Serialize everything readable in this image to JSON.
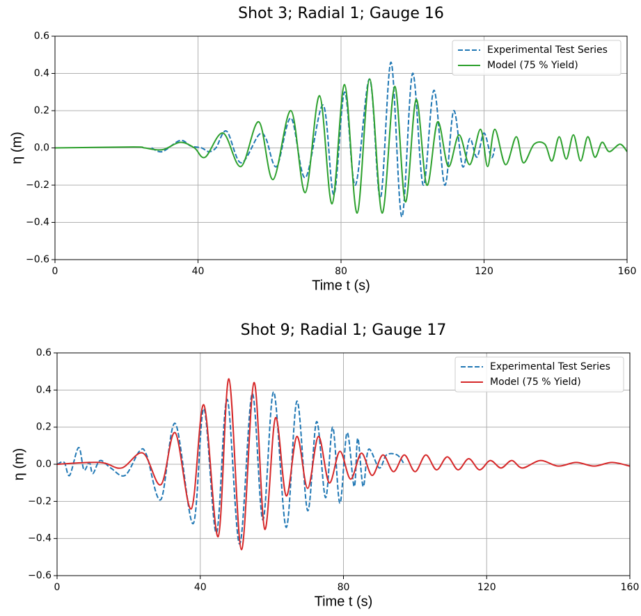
{
  "chart_data": [
    {
      "type": "line",
      "title": "Shot 3; Radial 1; Gauge 16",
      "xlabel": "Time t (s)",
      "ylabel": "η (m)",
      "xlim": [
        0,
        160
      ],
      "ylim": [
        -0.6,
        0.6
      ],
      "xticks": [
        0,
        40,
        80,
        120,
        160
      ],
      "yticks": [
        {
          "value": -0.6,
          "label": "−0.6"
        },
        {
          "value": -0.4,
          "label": "−0.4"
        },
        {
          "value": -0.2,
          "label": "−0.2"
        },
        {
          "value": 0,
          "label": "0.0"
        },
        0.2,
        0.4,
        0.6
      ],
      "grid": true,
      "legend": "upper right",
      "series": [
        {
          "name": "Experimental Test Series",
          "color": "#1f77b4",
          "linestyle": "dashed",
          "x": [
            27,
            30,
            35,
            38,
            41,
            43,
            45,
            48,
            52,
            57,
            59,
            62,
            66,
            70,
            75,
            78,
            81,
            84,
            88,
            91,
            94,
            97,
            100,
            103,
            106,
            109,
            111.5,
            114,
            116,
            118,
            120,
            122,
            123
          ],
          "values": [
            0,
            -0.02,
            0.04,
            0.01,
            0,
            -0.02,
            0,
            0.09,
            -0.08,
            0.07,
            0.05,
            -0.1,
            0.16,
            -0.16,
            0.23,
            -0.25,
            0.3,
            -0.2,
            0.37,
            -0.27,
            0.46,
            -0.37,
            0.4,
            -0.2,
            0.31,
            -0.2,
            0.2,
            -0.1,
            0.05,
            -0.05,
            0.08,
            -0.05,
            0
          ]
        },
        {
          "name": "Model (75 % Yield)",
          "color": "#2ca02c",
          "linestyle": "solid",
          "x": [
            0,
            22,
            25,
            30,
            35,
            39,
            42,
            47,
            52,
            57,
            61,
            66,
            70,
            74,
            77.5,
            81,
            84.5,
            88,
            91.5,
            95,
            98,
            101,
            104,
            107,
            110,
            113,
            116,
            119,
            121,
            123,
            126,
            129,
            131,
            134,
            137,
            139,
            141,
            143,
            145,
            147,
            149,
            151,
            153,
            155,
            158,
            160
          ],
          "values": [
            0,
            0.005,
            0,
            -0.01,
            0.03,
            0,
            -0.05,
            0.08,
            -0.1,
            0.14,
            -0.17,
            0.2,
            -0.24,
            0.28,
            -0.3,
            0.34,
            -0.35,
            0.37,
            -0.35,
            0.33,
            -0.29,
            0.26,
            -0.2,
            0.14,
            -0.1,
            0.07,
            -0.09,
            0.1,
            -0.1,
            0.1,
            -0.09,
            0.06,
            -0.08,
            0.02,
            0.02,
            -0.07,
            0.06,
            -0.06,
            0.07,
            -0.07,
            0.06,
            -0.05,
            0.03,
            -0.02,
            0.02,
            -0.02
          ]
        }
      ]
    },
    {
      "type": "line",
      "title": "Shot 9; Radial 1; Gauge 17",
      "xlabel": "Time t (s)",
      "ylabel": "η (m)",
      "xlim": [
        0,
        160
      ],
      "ylim": [
        -0.6,
        0.6
      ],
      "xticks": [
        0,
        40,
        80,
        120,
        160
      ],
      "yticks": [
        {
          "value": -0.6,
          "label": "−0.6"
        },
        {
          "value": -0.4,
          "label": "−0.4"
        },
        {
          "value": -0.2,
          "label": "−0.2"
        },
        {
          "value": 0,
          "label": "0.0"
        },
        0.2,
        0.4,
        0.6
      ],
      "grid": true,
      "legend": "upper right",
      "series": [
        {
          "name": "Experimental Test Series",
          "color": "#1f77b4",
          "linestyle": "dashed",
          "x": [
            0,
            2,
            3.5,
            6,
            7.5,
            9,
            10,
            12,
            15,
            19,
            23,
            25,
            29,
            33,
            38,
            41,
            44.5,
            47.5,
            51,
            54.5,
            57.5,
            60.5,
            64,
            67,
            70,
            72.5,
            75,
            77,
            79,
            81,
            83,
            84,
            85.5,
            87,
            90,
            92,
            95,
            97
          ],
          "values": [
            0,
            0.01,
            -0.06,
            0.09,
            -0.03,
            0.01,
            -0.05,
            0.02,
            -0.02,
            -0.06,
            0.07,
            0.05,
            -0.19,
            0.22,
            -0.32,
            0.3,
            -0.37,
            0.35,
            -0.43,
            0.38,
            -0.3,
            0.39,
            -0.34,
            0.34,
            -0.25,
            0.23,
            -0.18,
            0.2,
            -0.21,
            0.17,
            -0.12,
            0.14,
            -0.12,
            0.08,
            -0.02,
            0.05,
            0.05,
            0
          ]
        },
        {
          "name": "Model (75 % Yield)",
          "color": "#d62728",
          "linestyle": "solid",
          "x": [
            0,
            12,
            18,
            24,
            29,
            33,
            37.5,
            41,
            45,
            48,
            51.5,
            55,
            58,
            61,
            64,
            67,
            70,
            73,
            76,
            79,
            82,
            85,
            88,
            91,
            94,
            97,
            100,
            103,
            106,
            109,
            112,
            115,
            118,
            121,
            124,
            127,
            130,
            135,
            140,
            145,
            150,
            155,
            160
          ],
          "values": [
            0,
            0.01,
            -0.02,
            0.06,
            -0.11,
            0.17,
            -0.24,
            0.32,
            -0.39,
            0.46,
            -0.46,
            0.44,
            -0.35,
            0.25,
            -0.17,
            0.15,
            -0.13,
            0.15,
            -0.1,
            0.07,
            -0.08,
            0.06,
            -0.06,
            0.05,
            -0.04,
            0.05,
            -0.04,
            0.05,
            -0.03,
            0.04,
            -0.03,
            0.03,
            -0.03,
            0.02,
            -0.02,
            0.02,
            -0.02,
            0.02,
            -0.01,
            0.01,
            -0.01,
            0.01,
            -0.01
          ]
        }
      ]
    }
  ]
}
